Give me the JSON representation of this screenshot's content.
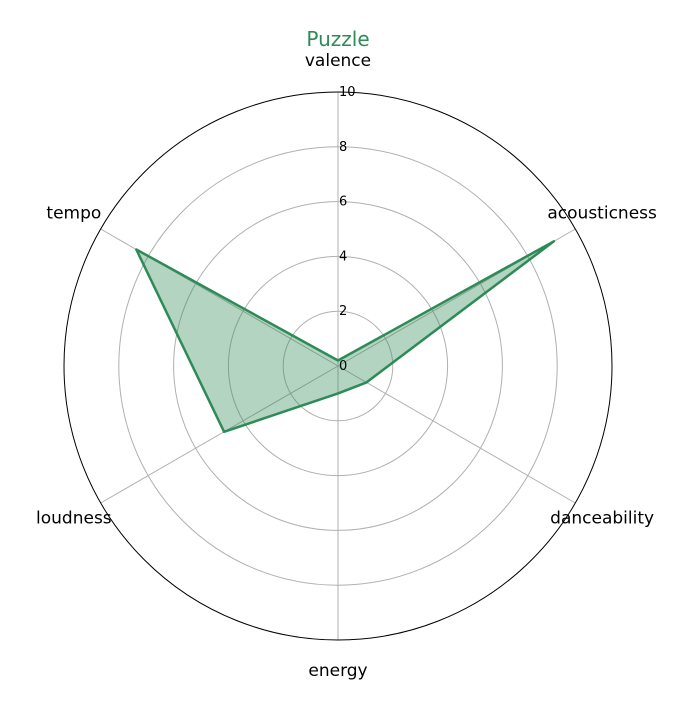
{
  "chart_data": {
    "type": "radar",
    "title": "Puzzle",
    "axes": [
      "valence",
      "acousticness",
      "danceability",
      "energy",
      "loudness",
      "tempo"
    ],
    "series": [
      {
        "values": [
          0.2,
          9.1,
          1.2,
          1.0,
          4.8,
          8.5
        ]
      }
    ],
    "rlim": [
      0,
      10
    ],
    "rticks": [
      0,
      2,
      4,
      6,
      8,
      10
    ],
    "rtick_labels": [
      "0",
      "2",
      "4",
      "6",
      "8",
      "10"
    ],
    "grid": true,
    "colors": {
      "series": "#2e8b57",
      "fill": "#2e8b57",
      "title": "#2e8b57",
      "grid": "#b0b0b0",
      "frame": "#000000"
    }
  }
}
